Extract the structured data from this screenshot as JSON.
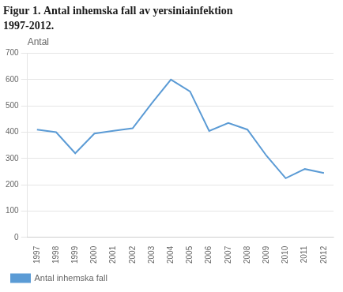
{
  "chart_data": {
    "type": "line",
    "title": "Figur 1. Antal inhemska fall av yersiniainfektion",
    "subtitle": "1997-2012.",
    "y_label": "Antal",
    "x": [
      1997,
      1998,
      1999,
      2000,
      2001,
      2002,
      2003,
      2004,
      2005,
      2006,
      2007,
      2008,
      2009,
      2010,
      2011,
      2012
    ],
    "series": [
      {
        "name": "Antal inhemska fall",
        "color": "#5b9bd5",
        "values": [
          410,
          400,
          320,
          395,
          405,
          415,
          510,
          600,
          555,
          405,
          435,
          410,
          310,
          225,
          260,
          245
        ]
      }
    ],
    "xlim": [
      1996.5,
      2012.5
    ],
    "xticks": [
      1997,
      1998,
      1999,
      2000,
      2001,
      2002,
      2003,
      2004,
      2005,
      2006,
      2007,
      2008,
      2009,
      2010,
      2011,
      2012
    ],
    "ylim": [
      0,
      700
    ],
    "yticks": [
      0,
      100,
      200,
      300,
      400,
      500,
      600,
      700
    ],
    "grid": "y",
    "legend": "bottom"
  }
}
